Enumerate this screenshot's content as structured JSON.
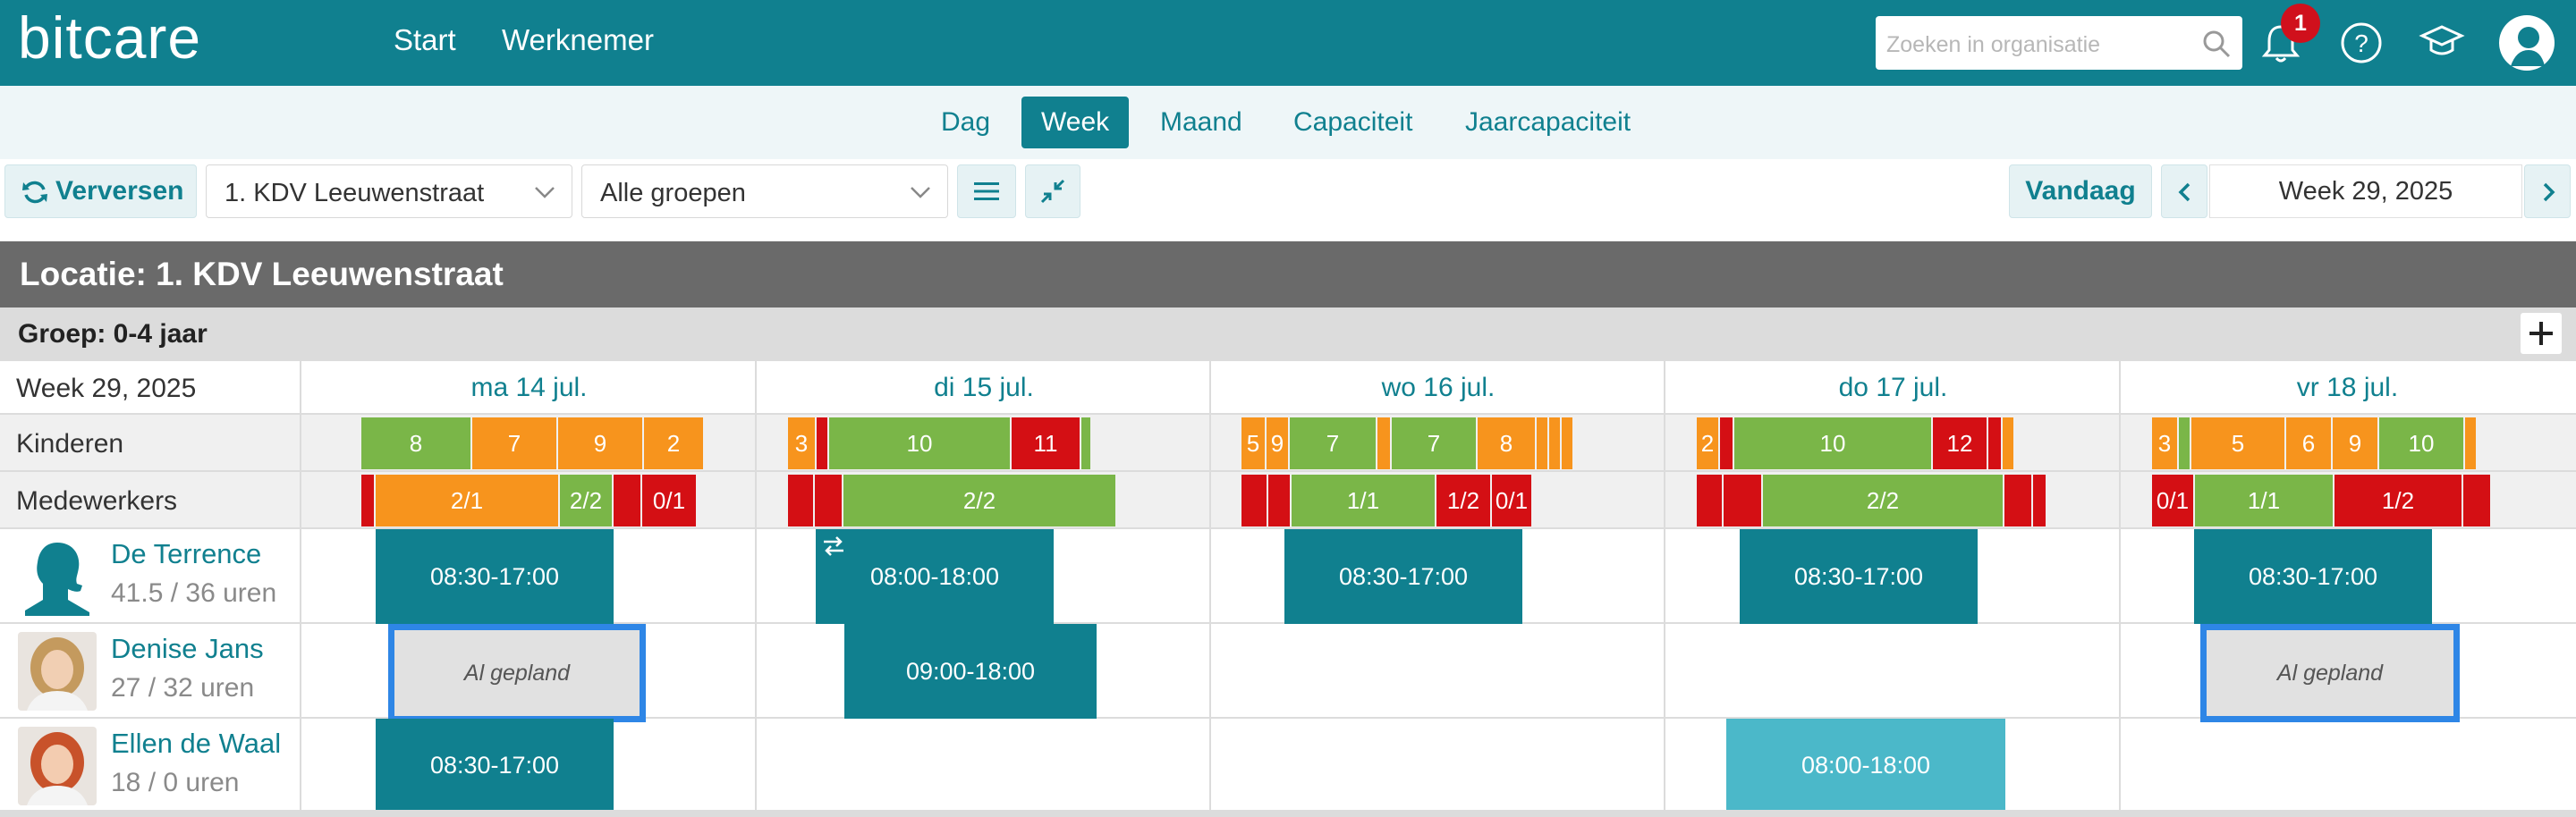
{
  "app": {
    "logo": "bitcare"
  },
  "topnav": [
    "Start",
    "Werknemer"
  ],
  "search": {
    "placeholder": "Zoeken in organisatie"
  },
  "notifications": {
    "count": "1"
  },
  "tabs": [
    "Dag",
    "Week",
    "Maand",
    "Capaciteit",
    "Jaarcapaciteit"
  ],
  "active_tab": "Week",
  "toolbar": {
    "refresh_label": "Verversen",
    "location_select": "1. KDV Leeuwenstraat",
    "group_select": "Alle groepen",
    "today_label": "Vandaag",
    "week_label": "Week 29, 2025"
  },
  "schedule": {
    "location_title": "Locatie: 1. KDV Leeuwenstraat",
    "group_title": "Groep: 0-4 jaar",
    "week_cell": "Week 29, 2025",
    "row_labels": {
      "children": "Kinderen",
      "staff": "Medewerkers"
    },
    "days": [
      "ma 14 jul.",
      "di 15 jul.",
      "wo 16 jul.",
      "do 17 jul.",
      "vr 18 jul."
    ],
    "children_segments": [
      [
        [
          "g",
          "8"
        ],
        [
          "o",
          "7"
        ],
        [
          "o",
          "9"
        ],
        [
          "o",
          "2"
        ]
      ],
      [
        [
          "o",
          "3"
        ],
        [
          "r",
          ""
        ],
        [
          "g",
          "10"
        ],
        [
          "r",
          "11"
        ],
        [
          "g",
          ""
        ]
      ],
      [
        [
          "o",
          "5"
        ],
        [
          "o",
          "9"
        ],
        [
          "g",
          "7"
        ],
        [
          "o",
          ""
        ],
        [
          "g",
          "7"
        ],
        [
          "o",
          "8"
        ],
        [
          "o",
          ""
        ],
        [
          "o",
          ""
        ],
        [
          "o",
          ""
        ]
      ],
      [
        [
          "o",
          "2"
        ],
        [
          "r",
          ""
        ],
        [
          "g",
          "10"
        ],
        [
          "r",
          "12"
        ],
        [
          "r",
          ""
        ],
        [
          "o",
          ""
        ]
      ],
      [
        [
          "o",
          "3"
        ],
        [
          "g",
          ""
        ],
        [
          "o",
          "5"
        ],
        [
          "o",
          "6"
        ],
        [
          "o",
          "9"
        ],
        [
          "g",
          "10"
        ],
        [
          "o",
          ""
        ]
      ]
    ],
    "staff_segments": [
      [
        [
          "r",
          ""
        ],
        [
          "o",
          "2/1"
        ],
        [
          "g",
          "2/2"
        ],
        [
          "r",
          ""
        ],
        [
          "r",
          "0/1"
        ]
      ],
      [
        [
          "r",
          ""
        ],
        [
          "r",
          ""
        ],
        [
          "g",
          "2/2"
        ]
      ],
      [
        [
          "r",
          ""
        ],
        [
          "r",
          ""
        ],
        [
          "g",
          "1/1"
        ],
        [
          "r",
          "1/2"
        ],
        [
          "r",
          "0/1"
        ]
      ],
      [
        [
          "r",
          ""
        ],
        [
          "r",
          ""
        ],
        [
          "g",
          "2/2"
        ],
        [
          "r",
          ""
        ],
        [
          "r",
          ""
        ]
      ],
      [
        [
          "r",
          "0/1"
        ],
        [
          "g",
          "1/1"
        ],
        [
          "r",
          "1/2"
        ],
        [
          "r",
          ""
        ]
      ]
    ],
    "employees": [
      {
        "name": "De Terrence",
        "hours": "41.5 / 36 uren",
        "avatar": "silhouette-avatar",
        "shifts": [
          {
            "day": 0,
            "text": "08:30-17:00"
          },
          {
            "day": 1,
            "text": "08:00-18:00",
            "swap": true
          },
          {
            "day": 2,
            "text": "08:30-17:00"
          },
          {
            "day": 3,
            "text": "08:30-17:00"
          },
          {
            "day": 4,
            "text": "08:30-17:00"
          }
        ]
      },
      {
        "name": "Denise Jans",
        "hours": "27 / 32 uren",
        "avatar": "photo-avatar",
        "shifts": [
          {
            "day": 0,
            "text": "Al gepland",
            "planned": true
          },
          {
            "day": 1,
            "text": "09:00-18:00"
          },
          {
            "day": 4,
            "text": "Al gepland",
            "planned": true
          }
        ]
      },
      {
        "name": "Ellen de Waal",
        "hours": "18 / 0 uren",
        "avatar": "photo-avatar",
        "shifts": [
          {
            "day": 0,
            "text": "08:30-17:00"
          },
          {
            "day": 3,
            "text": "08:00-18:00",
            "light": true
          }
        ]
      }
    ]
  }
}
